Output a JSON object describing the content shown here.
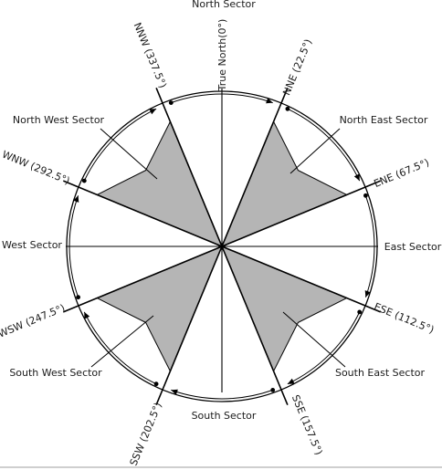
{
  "colors": {
    "line": "#000000",
    "shaded": "#b5b5b5",
    "background": "#ffffff"
  },
  "bearing_labels": [
    {
      "id": "true-north",
      "text": "True North(0°)",
      "bearing": 0
    },
    {
      "id": "nne",
      "text": "NNE (22.5°)",
      "bearing": 22.5
    },
    {
      "id": "ene",
      "text": "ENE (67.5°)",
      "bearing": 67.5
    },
    {
      "id": "ese",
      "text": "ESE (112.5°)",
      "bearing": 112.5
    },
    {
      "id": "sse",
      "text": "SSE (157.5°)",
      "bearing": 157.5
    },
    {
      "id": "ssw",
      "text": "SSW (202.5°)",
      "bearing": 202.5
    },
    {
      "id": "wsw",
      "text": "WSW (247.5°)",
      "bearing": 247.5
    },
    {
      "id": "wnw",
      "text": "WNW (292.5°)",
      "bearing": 292.5
    },
    {
      "id": "nnw",
      "text": "NNW (337.5°)",
      "bearing": 337.5
    }
  ],
  "sector_labels": {
    "north": "North Sector",
    "north_east": "North East Sector",
    "east": "East Sector",
    "south_east": "South East Sector",
    "south": "South Sector",
    "south_west": "South West Sector",
    "west": "West Sector",
    "north_west": "North West Sector"
  }
}
